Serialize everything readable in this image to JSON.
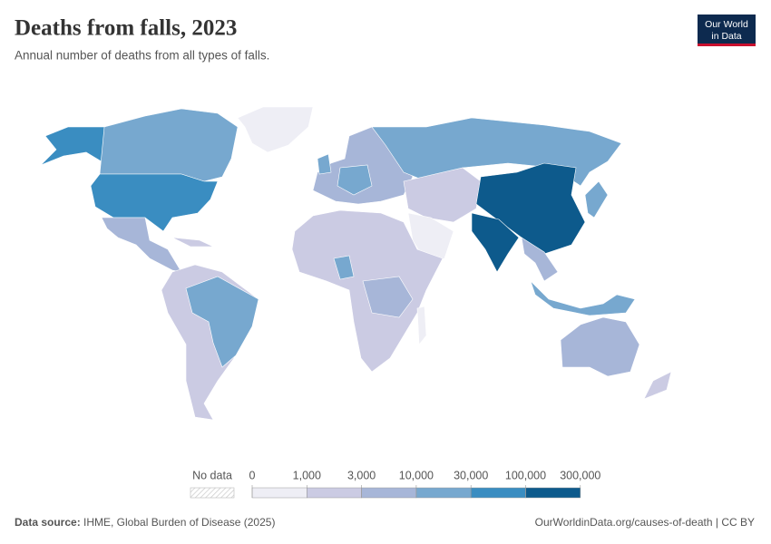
{
  "header": {
    "title": "Deaths from falls, 2023",
    "subtitle": "Annual number of deaths from all types of falls.",
    "logo": [
      "Our World",
      "in Data"
    ]
  },
  "legend": {
    "no_data": "No data",
    "ticks": [
      0,
      {
        "value": 1000,
        "label": "1,000"
      },
      {
        "value": 3000,
        "label": "3,000"
      },
      {
        "value": 10000,
        "label": "10,000"
      },
      {
        "value": 30000,
        "label": "30,000"
      },
      {
        "value": 100000,
        "label": "100,000"
      },
      {
        "value": 300000,
        "label": "300,000"
      }
    ],
    "colors": [
      "#eeeef5",
      "#cbcbe3",
      "#a7b6d8",
      "#77a8cf",
      "#3a8dc1",
      "#0d5a8c"
    ]
  },
  "footer": {
    "source_label": "Data source:",
    "source": "IHME, Global Burden of Disease (2025)",
    "url": "OurWorldinData.org/causes-of-death | CC BY"
  }
}
